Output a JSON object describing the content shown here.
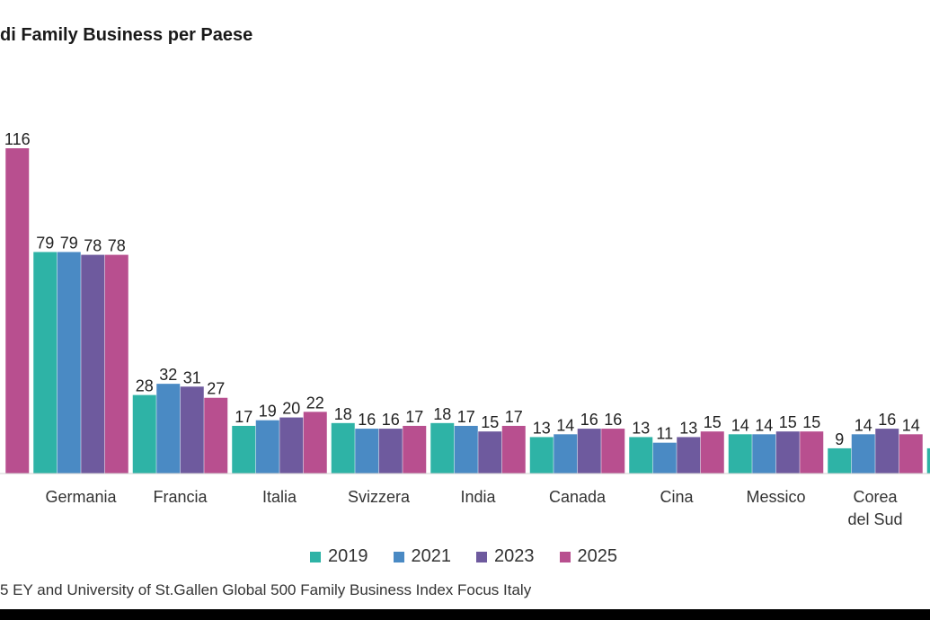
{
  "title": "di Family Business per Paese",
  "source": "5 EY and University of St.Gallen Global 500 Family Business Index Focus Italy",
  "chart_data": {
    "type": "bar",
    "title": "di Family Business per Paese",
    "ylim": [
      0,
      120
    ],
    "grid": false,
    "legend_placement": "bottom-center",
    "series": [
      {
        "name": "2019",
        "color": "#2eb3a6",
        "values": [
          null,
          79,
          28,
          17,
          18,
          18,
          13,
          13,
          14,
          9,
          9
        ]
      },
      {
        "name": "2021",
        "color": "#4a8ac4",
        "values": [
          null,
          79,
          32,
          19,
          16,
          17,
          14,
          11,
          14,
          14,
          null
        ]
      },
      {
        "name": "2023",
        "color": "#6e5a9e",
        "values": [
          null,
          78,
          31,
          20,
          16,
          15,
          16,
          13,
          15,
          16,
          null
        ]
      },
      {
        "name": "2025",
        "color": "#b84f8f",
        "values": [
          116,
          78,
          27,
          22,
          17,
          17,
          16,
          15,
          15,
          14,
          null
        ]
      }
    ],
    "categories": [
      {
        "lines": [
          ""
        ]
      },
      {
        "lines": [
          "Germania"
        ]
      },
      {
        "lines": [
          "Francia"
        ]
      },
      {
        "lines": [
          "Italia"
        ]
      },
      {
        "lines": [
          "Svizzera"
        ]
      },
      {
        "lines": [
          "India"
        ]
      },
      {
        "lines": [
          "Canada"
        ]
      },
      {
        "lines": [
          "Cina"
        ]
      },
      {
        "lines": [
          "Messico"
        ]
      },
      {
        "lines": [
          "Corea",
          "del Sud"
        ]
      },
      {
        "lines": [
          ""
        ]
      }
    ]
  }
}
